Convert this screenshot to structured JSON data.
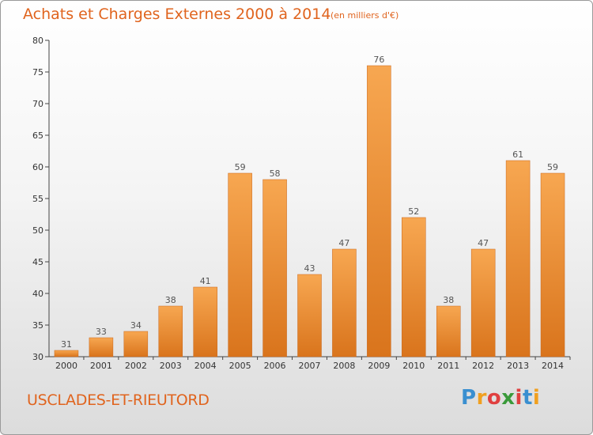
{
  "title": "Achats et Charges Externes 2000 à 2014",
  "subtitle": "(en milliers d'€)",
  "commune": "USCLADES-ET-RIEUTORD",
  "logo": {
    "letters": [
      "P",
      "r",
      "o",
      "x",
      "i",
      "t",
      "i"
    ],
    "colors": [
      "#3a8fd0",
      "#f0a020",
      "#e04040",
      "#3a9a3a",
      "#e04040",
      "#3a8fd0",
      "#f0a020"
    ]
  },
  "colors": {
    "bar_top": "#f7a751",
    "bar_bottom": "#d9741c",
    "accent": "#e0641e"
  },
  "chart_data": {
    "type": "bar",
    "categories": [
      "2000",
      "2001",
      "2002",
      "2003",
      "2004",
      "2005",
      "2006",
      "2007",
      "2008",
      "2009",
      "2010",
      "2011",
      "2012",
      "2013",
      "2014"
    ],
    "values": [
      31,
      33,
      34,
      38,
      41,
      59,
      58,
      43,
      47,
      76,
      52,
      38,
      47,
      61,
      59
    ],
    "title": "Achats et Charges Externes 2000 à 2014",
    "ylim": [
      30,
      80
    ],
    "yticks": [
      30,
      35,
      40,
      45,
      50,
      55,
      60,
      65,
      70,
      75,
      80
    ],
    "grid": false,
    "legend": "none"
  }
}
